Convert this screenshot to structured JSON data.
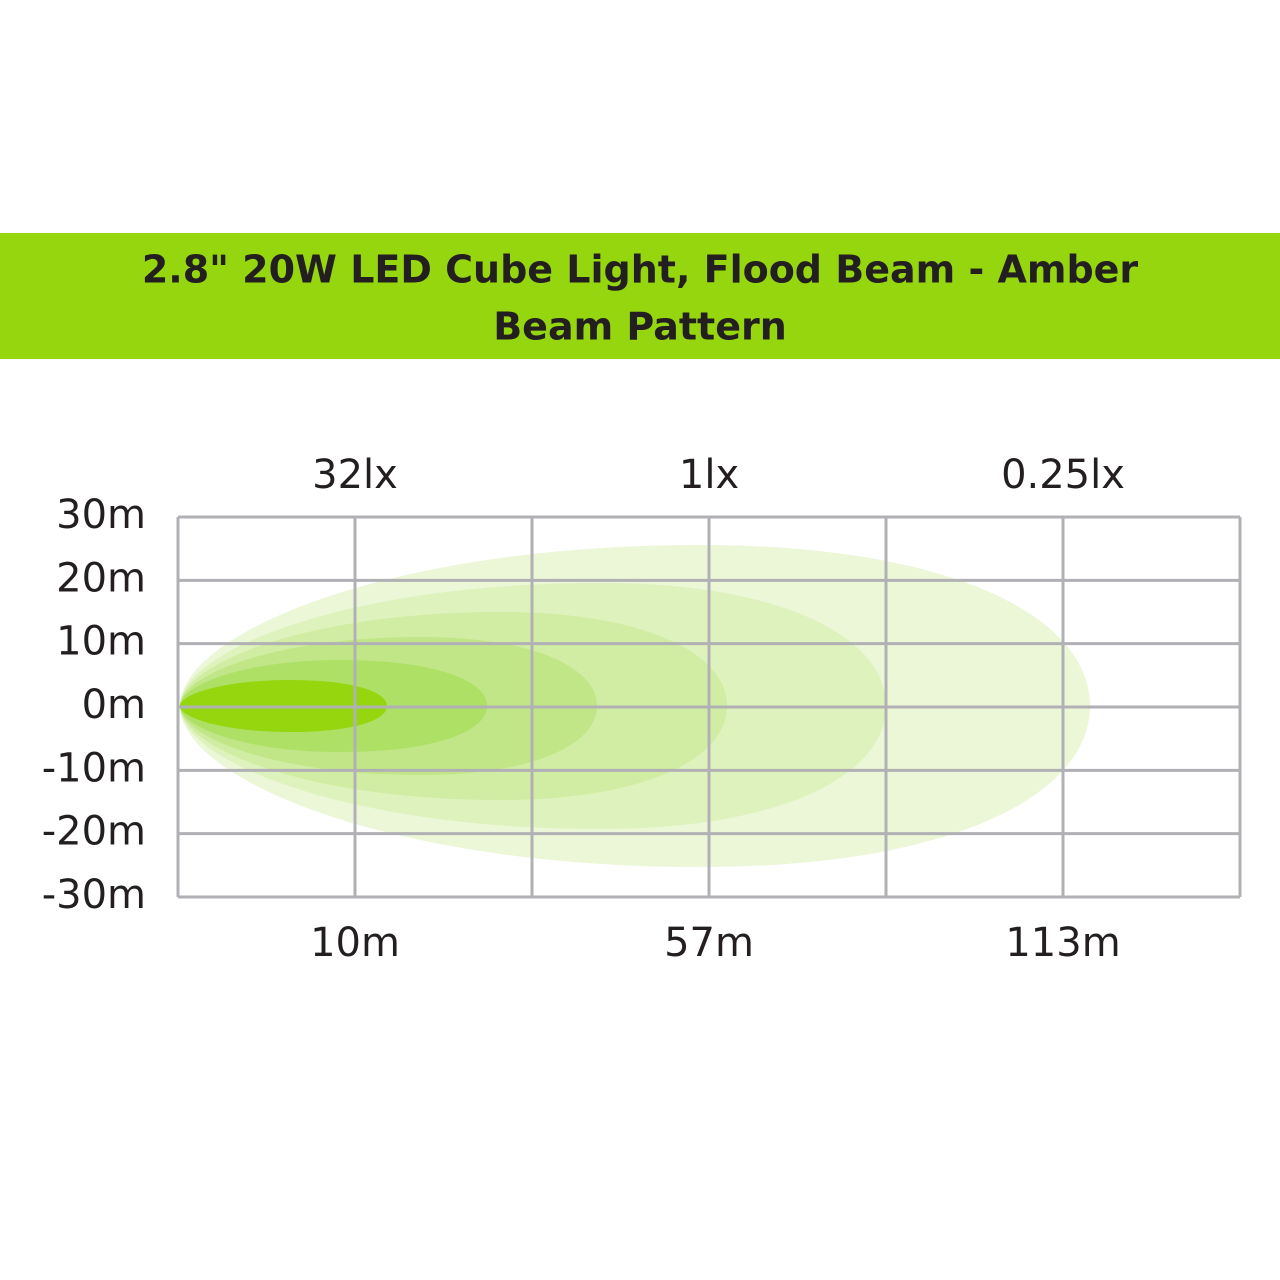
{
  "header": {
    "title_lines": [
      "2.8\" 20W LED Cube Light, Flood Beam - Amber",
      "Beam Pattern"
    ]
  },
  "lux_labels": [
    "32lx",
    "1lx",
    "0.25lx"
  ],
  "y_labels": [
    "30m",
    "20m",
    "10m",
    "0m",
    "-10m",
    "-20m",
    "-30m"
  ],
  "distance_labels": [
    "10m",
    "57m",
    "113m"
  ]
}
